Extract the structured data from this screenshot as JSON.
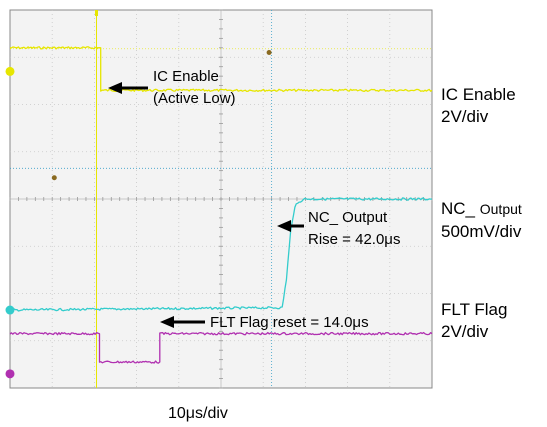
{
  "chart_data": {
    "type": "line",
    "title": "",
    "xlabel": "",
    "ylabel": "",
    "x_scale": "10μs/div",
    "x_divisions": 10,
    "y_divisions": 8,
    "grid": true,
    "colors": {
      "background": "#f3f3f3",
      "grid": "#c8c8c8",
      "ic_enable": "#e6e600",
      "nc_output": "#33cccc",
      "flt_flag": "#b030b0",
      "cursor": "#3aa0c8"
    },
    "series": [
      {
        "id": "ic_enable",
        "label": "IC Enable",
        "scale": "2V/div",
        "points": [
          [
            0,
            7.2
          ],
          [
            2.15,
            7.2
          ],
          [
            2.15,
            6.3
          ],
          [
            10,
            6.3
          ]
        ]
      },
      {
        "id": "nc_output",
        "label_main": "NC_",
        "label_sub": "Output",
        "scale": "500mV/div",
        "points": [
          [
            0,
            1.65
          ],
          [
            6.45,
            1.7
          ],
          [
            6.55,
            2.3
          ],
          [
            6.65,
            3.3
          ],
          [
            6.75,
            3.85
          ],
          [
            6.95,
            4.0
          ],
          [
            10,
            4.0
          ]
        ]
      },
      {
        "id": "flt_flag",
        "label": "FLT Flag",
        "scale": "2V/div",
        "points": [
          [
            0,
            1.15
          ],
          [
            2.12,
            1.15
          ],
          [
            2.12,
            0.55
          ],
          [
            3.55,
            0.55
          ],
          [
            3.55,
            1.15
          ],
          [
            10,
            1.15
          ]
        ]
      }
    ],
    "annotations": {
      "ic_enable_l1": "IC Enable",
      "ic_enable_l2": "(Active Low)",
      "nc_l1": "NC_ Output",
      "nc_l2": "Rise = 42.0μs",
      "flt": "FLT Flag reset = 14.0μs"
    }
  }
}
